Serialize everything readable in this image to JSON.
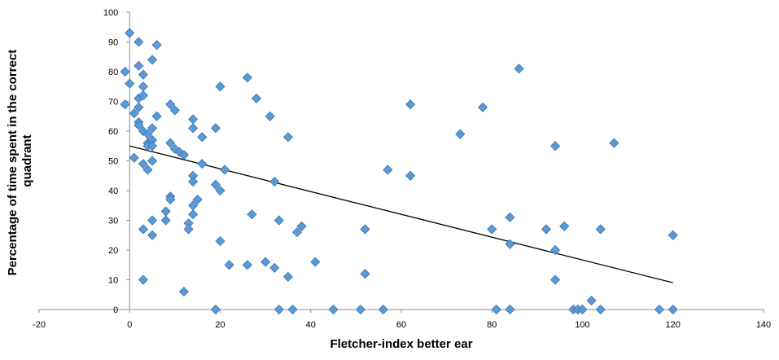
{
  "chart_data": {
    "type": "scatter",
    "title": "",
    "xlabel": "Fletcher-index better ear",
    "ylabel": [
      "Percentage of time spent in the correct",
      "quadrant"
    ],
    "xlim": [
      -20,
      140
    ],
    "ylim": [
      0,
      100
    ],
    "x_ticks": [
      -20,
      0,
      20,
      40,
      60,
      80,
      100,
      120,
      140
    ],
    "y_ticks": [
      0,
      10,
      20,
      30,
      40,
      50,
      60,
      70,
      80,
      90,
      100
    ],
    "grid": false,
    "legend": "none",
    "marker_color": "#5b9bd5",
    "marker_edge_color": "#3a72b0",
    "trendline": {
      "from": [
        0,
        55
      ],
      "to": [
        120,
        9
      ]
    },
    "points": [
      [
        0,
        93
      ],
      [
        -1,
        80
      ],
      [
        0,
        76
      ],
      [
        -1,
        69
      ],
      [
        1,
        66
      ],
      [
        1,
        51
      ],
      [
        2,
        90
      ],
      [
        2,
        82
      ],
      [
        2,
        71
      ],
      [
        2,
        68
      ],
      [
        2,
        63
      ],
      [
        2,
        62
      ],
      [
        3,
        60
      ],
      [
        3,
        75
      ],
      [
        3,
        72
      ],
      [
        3,
        79
      ],
      [
        3,
        49
      ],
      [
        3,
        27
      ],
      [
        3,
        10
      ],
      [
        4,
        59
      ],
      [
        4,
        56
      ],
      [
        4,
        55
      ],
      [
        4,
        47
      ],
      [
        5,
        84
      ],
      [
        5,
        61
      ],
      [
        5,
        57
      ],
      [
        5,
        55
      ],
      [
        5,
        50
      ],
      [
        5,
        30
      ],
      [
        5,
        25
      ],
      [
        6,
        89
      ],
      [
        6,
        65
      ],
      [
        8,
        33
      ],
      [
        8,
        30
      ],
      [
        9,
        69
      ],
      [
        9,
        56
      ],
      [
        9,
        38
      ],
      [
        9,
        37
      ],
      [
        10,
        67
      ],
      [
        10,
        54
      ],
      [
        11,
        53
      ],
      [
        12,
        52
      ],
      [
        12,
        6
      ],
      [
        13,
        29
      ],
      [
        13,
        27
      ],
      [
        14,
        64
      ],
      [
        14,
        61
      ],
      [
        14,
        45
      ],
      [
        14,
        43
      ],
      [
        14,
        35
      ],
      [
        14,
        32
      ],
      [
        15,
        37
      ],
      [
        16,
        58
      ],
      [
        16,
        49
      ],
      [
        19,
        61
      ],
      [
        19,
        42
      ],
      [
        19,
        0
      ],
      [
        20,
        75
      ],
      [
        20,
        40
      ],
      [
        20,
        23
      ],
      [
        21,
        47
      ],
      [
        22,
        15
      ],
      [
        26,
        78
      ],
      [
        26,
        15
      ],
      [
        27,
        32
      ],
      [
        28,
        71
      ],
      [
        30,
        16
      ],
      [
        31,
        65
      ],
      [
        32,
        43
      ],
      [
        32,
        14
      ],
      [
        33,
        30
      ],
      [
        33,
        0
      ],
      [
        35,
        58
      ],
      [
        35,
        11
      ],
      [
        36,
        0
      ],
      [
        37,
        26
      ],
      [
        38,
        28
      ],
      [
        41,
        16
      ],
      [
        45,
        0
      ],
      [
        51,
        0
      ],
      [
        52,
        27
      ],
      [
        52,
        12
      ],
      [
        56,
        0
      ],
      [
        57,
        47
      ],
      [
        62,
        69
      ],
      [
        62,
        45
      ],
      [
        73,
        59
      ],
      [
        78,
        68
      ],
      [
        80,
        27
      ],
      [
        81,
        0
      ],
      [
        84,
        31
      ],
      [
        84,
        22
      ],
      [
        84,
        0
      ],
      [
        86,
        81
      ],
      [
        92,
        27
      ],
      [
        94,
        20
      ],
      [
        94,
        10
      ],
      [
        94,
        55
      ],
      [
        96,
        28
      ],
      [
        98,
        0
      ],
      [
        99,
        0
      ],
      [
        100,
        0
      ],
      [
        102,
        3
      ],
      [
        104,
        27
      ],
      [
        104,
        0
      ],
      [
        107,
        56
      ],
      [
        117,
        0
      ],
      [
        120,
        25
      ],
      [
        120,
        0
      ]
    ]
  }
}
